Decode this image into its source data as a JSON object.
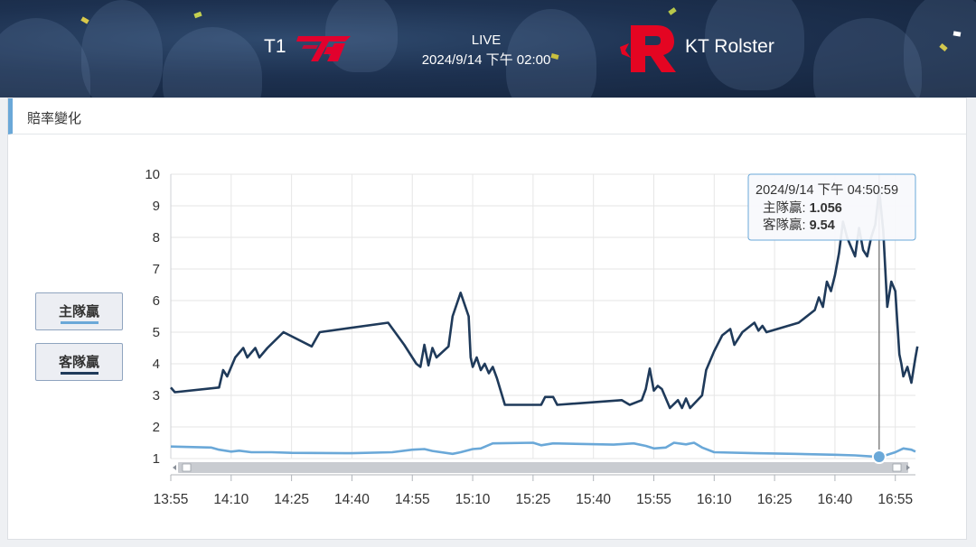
{
  "match": {
    "home_team": "T1",
    "away_team": "KT Rolster",
    "status": "LIVE",
    "start_time": "2024/9/14 下午 02:00"
  },
  "section": {
    "title": "賠率變化"
  },
  "legend": {
    "home_label": "主隊贏",
    "away_label": "客隊贏",
    "home_color": "#6aa8d8",
    "away_color": "#1f3a5a"
  },
  "tooltip": {
    "time": "2024/9/14 下午 04:50:59",
    "home_label": "主隊贏: ",
    "home_value": "1.056",
    "away_label": "客隊贏: ",
    "away_value": "9.54"
  },
  "chart_data": {
    "type": "line",
    "title": "",
    "xlabel": "",
    "ylabel": "",
    "ylim": [
      1,
      10
    ],
    "x_ticks": [
      "13:55",
      "14:10",
      "14:25",
      "14:40",
      "14:55",
      "15:10",
      "15:25",
      "15:40",
      "15:55",
      "16:10",
      "16:25",
      "16:40",
      "16:55"
    ],
    "y_ticks": [
      1,
      2,
      3,
      4,
      5,
      6,
      7,
      8,
      9,
      10
    ],
    "x_range": [
      "13:55",
      "17:00"
    ],
    "grid": true,
    "series": [
      {
        "name": "主隊贏",
        "color": "#6aa8d8",
        "points": [
          [
            "13:55",
            1.38
          ],
          [
            "14:05",
            1.35
          ],
          [
            "14:07",
            1.28
          ],
          [
            "14:10",
            1.22
          ],
          [
            "14:12",
            1.25
          ],
          [
            "14:15",
            1.2
          ],
          [
            "14:20",
            1.2
          ],
          [
            "14:25",
            1.18
          ],
          [
            "14:40",
            1.17
          ],
          [
            "14:50",
            1.2
          ],
          [
            "14:55",
            1.28
          ],
          [
            "14:58",
            1.3
          ],
          [
            "15:00",
            1.24
          ],
          [
            "15:05",
            1.15
          ],
          [
            "15:07",
            1.2
          ],
          [
            "15:10",
            1.3
          ],
          [
            "15:12",
            1.32
          ],
          [
            "15:15",
            1.48
          ],
          [
            "15:25",
            1.5
          ],
          [
            "15:27",
            1.42
          ],
          [
            "15:30",
            1.48
          ],
          [
            "15:45",
            1.44
          ],
          [
            "15:50",
            1.48
          ],
          [
            "15:53",
            1.4
          ],
          [
            "15:55",
            1.32
          ],
          [
            "15:58",
            1.35
          ],
          [
            "16:00",
            1.5
          ],
          [
            "16:03",
            1.45
          ],
          [
            "16:05",
            1.5
          ],
          [
            "16:07",
            1.35
          ],
          [
            "16:10",
            1.2
          ],
          [
            "16:20",
            1.17
          ],
          [
            "16:30",
            1.15
          ],
          [
            "16:40",
            1.12
          ],
          [
            "16:45",
            1.1
          ],
          [
            "16:50",
            1.06
          ],
          [
            "16:52",
            1.08
          ],
          [
            "16:55",
            1.2
          ],
          [
            "16:57",
            1.32
          ],
          [
            "16:59",
            1.28
          ],
          [
            "17:00",
            1.22
          ]
        ]
      },
      {
        "name": "客隊贏",
        "color": "#1f3a5a",
        "points": [
          [
            "13:55",
            3.25
          ],
          [
            "13:56",
            3.1
          ],
          [
            "14:07",
            3.25
          ],
          [
            "14:08",
            3.8
          ],
          [
            "14:09",
            3.6
          ],
          [
            "14:11",
            4.2
          ],
          [
            "14:13",
            4.5
          ],
          [
            "14:14",
            4.2
          ],
          [
            "14:16",
            4.5
          ],
          [
            "14:17",
            4.2
          ],
          [
            "14:19",
            4.5
          ],
          [
            "14:23",
            5.0
          ],
          [
            "14:30",
            4.55
          ],
          [
            "14:32",
            5.0
          ],
          [
            "14:49",
            5.3
          ],
          [
            "14:53",
            4.6
          ],
          [
            "14:56",
            4.0
          ],
          [
            "14:57",
            3.9
          ],
          [
            "14:58",
            4.6
          ],
          [
            "14:59",
            3.95
          ],
          [
            "15:00",
            4.5
          ],
          [
            "15:01",
            4.2
          ],
          [
            "15:04",
            4.55
          ],
          [
            "15:05",
            5.5
          ],
          [
            "15:07",
            6.25
          ],
          [
            "15:09",
            5.5
          ],
          [
            "15:09.5",
            4.2
          ],
          [
            "15:10",
            3.9
          ],
          [
            "15:11",
            4.2
          ],
          [
            "15:12",
            3.8
          ],
          [
            "15:13",
            4.0
          ],
          [
            "15:14",
            3.7
          ],
          [
            "15:15",
            3.9
          ],
          [
            "15:16",
            3.55
          ],
          [
            "15:18",
            2.7
          ],
          [
            "15:27",
            2.7
          ],
          [
            "15:28",
            2.95
          ],
          [
            "15:30",
            2.95
          ],
          [
            "15:31",
            2.7
          ],
          [
            "15:47",
            2.85
          ],
          [
            "15:49",
            2.7
          ],
          [
            "15:52",
            2.85
          ],
          [
            "15:53",
            3.2
          ],
          [
            "15:54",
            3.85
          ],
          [
            "15:55",
            3.15
          ],
          [
            "15:56",
            3.3
          ],
          [
            "15:57",
            3.2
          ],
          [
            "15:59",
            2.6
          ],
          [
            "16:01",
            2.85
          ],
          [
            "16:02",
            2.6
          ],
          [
            "16:03",
            2.9
          ],
          [
            "16:04",
            2.6
          ],
          [
            "16:07",
            3.0
          ],
          [
            "16:08",
            3.8
          ],
          [
            "16:10",
            4.4
          ],
          [
            "16:12",
            4.9
          ],
          [
            "16:14",
            5.1
          ],
          [
            "16:15",
            4.6
          ],
          [
            "16:17",
            5.0
          ],
          [
            "16:20",
            5.3
          ],
          [
            "16:21",
            5.05
          ],
          [
            "16:22",
            5.2
          ],
          [
            "16:23",
            5.0
          ],
          [
            "16:31",
            5.3
          ],
          [
            "16:35",
            5.7
          ],
          [
            "16:36",
            6.1
          ],
          [
            "16:37",
            5.8
          ],
          [
            "16:38",
            6.6
          ],
          [
            "16:39",
            6.3
          ],
          [
            "16:40",
            6.8
          ],
          [
            "16:41",
            7.5
          ],
          [
            "16:42",
            8.5
          ],
          [
            "16:43",
            8.0
          ],
          [
            "16:44",
            7.7
          ],
          [
            "16:45",
            7.4
          ],
          [
            "16:46",
            8.3
          ],
          [
            "16:47",
            7.6
          ],
          [
            "16:48",
            7.4
          ],
          [
            "16:49",
            8.0
          ],
          [
            "16:50",
            8.4
          ],
          [
            "16:51",
            9.5
          ],
          [
            "16:52",
            8.2
          ],
          [
            "16:53",
            5.8
          ],
          [
            "16:54",
            6.6
          ],
          [
            "16:55",
            6.3
          ],
          [
            "16:56",
            4.3
          ],
          [
            "16:56.5",
            4.0
          ],
          [
            "16:57",
            3.6
          ],
          [
            "16:58",
            3.9
          ],
          [
            "16:59",
            3.4
          ],
          [
            "17:00",
            4.2
          ],
          [
            "17:00.5",
            4.55
          ]
        ]
      }
    ],
    "crosshair_time": "16:50:59"
  }
}
